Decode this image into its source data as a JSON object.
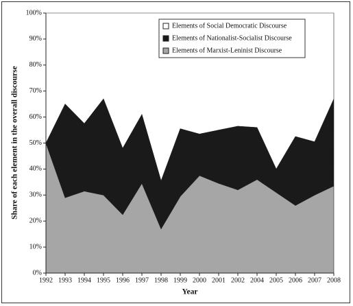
{
  "chart_data": {
    "type": "stacked_area",
    "x_label": "Year",
    "y_label": "Share of each element in the overall discourse",
    "categories": [
      "1992",
      "1993",
      "1994",
      "1995",
      "1996",
      "1997",
      "1998",
      "1999",
      "2000",
      "2001",
      "2002",
      "2004",
      "2005",
      "2006",
      "2007",
      "2008"
    ],
    "series": [
      {
        "name": "Elements of Social Democratic Discourse",
        "color": "#ffffff",
        "values": [
          50,
          35,
          42.5,
          33,
          52,
          39,
          64.5,
          44.5,
          46.5,
          45,
          43.5,
          44,
          60,
          47.5,
          49.5,
          33
        ]
      },
      {
        "name": "Elements of Nationalist-Socialist Discourse",
        "color": "#1a1a1a",
        "values": [
          0,
          36,
          26,
          37,
          25.5,
          26.5,
          18.5,
          26,
          16,
          20.5,
          24.5,
          20,
          9,
          26.5,
          20.5,
          33.5
        ]
      },
      {
        "name": "Elements of Marxist-Leninist Discourse",
        "color": "#a6a6a6",
        "values": [
          50,
          29,
          31.5,
          30,
          22.5,
          34.5,
          17,
          29.5,
          37.5,
          34.5,
          32,
          36,
          31,
          26,
          30,
          33.5
        ]
      }
    ],
    "ylim": [
      0,
      100
    ],
    "yticks": [
      {
        "value": 0,
        "label": "0%"
      },
      {
        "value": 10,
        "label": "10%"
      },
      {
        "value": 20,
        "label": "20%"
      },
      {
        "value": 30,
        "label": "30%"
      },
      {
        "value": 40,
        "label": "40%"
      },
      {
        "value": 50,
        "label": "50%"
      },
      {
        "value": 60,
        "label": "60%"
      },
      {
        "value": 70,
        "label": "70%"
      },
      {
        "value": 80,
        "label": "80%"
      },
      {
        "value": 90,
        "label": "90%"
      },
      {
        "value": 100,
        "label": "100%"
      }
    ],
    "legend_position": "upper right"
  }
}
